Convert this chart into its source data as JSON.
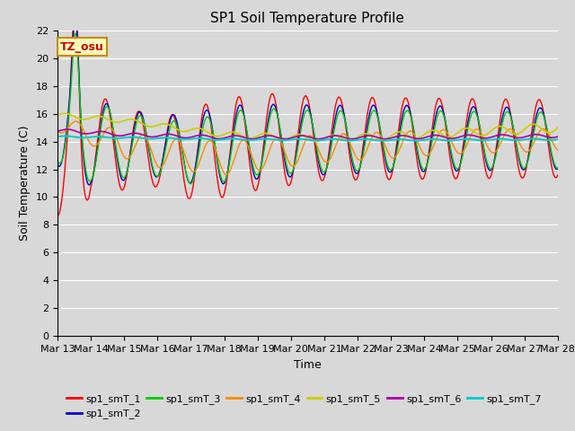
{
  "title": "SP1 Soil Temperature Profile",
  "xlabel": "Time",
  "ylabel": "Soil Temperature (C)",
  "ylim": [
    0,
    22
  ],
  "yticks": [
    0,
    2,
    4,
    6,
    8,
    10,
    12,
    14,
    16,
    18,
    20,
    22
  ],
  "x_labels": [
    "Mar 13",
    "Mar 14",
    "Mar 15",
    "Mar 16",
    "Mar 17",
    "Mar 18",
    "Mar 19",
    "Mar 20",
    "Mar 21",
    "Mar 22",
    "Mar 23",
    "Mar 24",
    "Mar 25",
    "Mar 26",
    "Mar 27",
    "Mar 28"
  ],
  "annotation_text": "TZ_osu",
  "annotation_bg": "#FFFFBB",
  "annotation_border": "#CC8800",
  "series_colors": {
    "sp1_smT_1": "#FF0000",
    "sp1_smT_2": "#0000CC",
    "sp1_smT_3": "#00CC00",
    "sp1_smT_4": "#FF8800",
    "sp1_smT_5": "#CCCC00",
    "sp1_smT_6": "#AA00AA",
    "sp1_smT_7": "#00CCCC"
  },
  "bg_color": "#D8D8D8",
  "plot_bg_color": "#D8D8D8",
  "grid_color": "#FFFFFF",
  "title_fontsize": 11,
  "axis_fontsize": 9,
  "tick_fontsize": 8
}
